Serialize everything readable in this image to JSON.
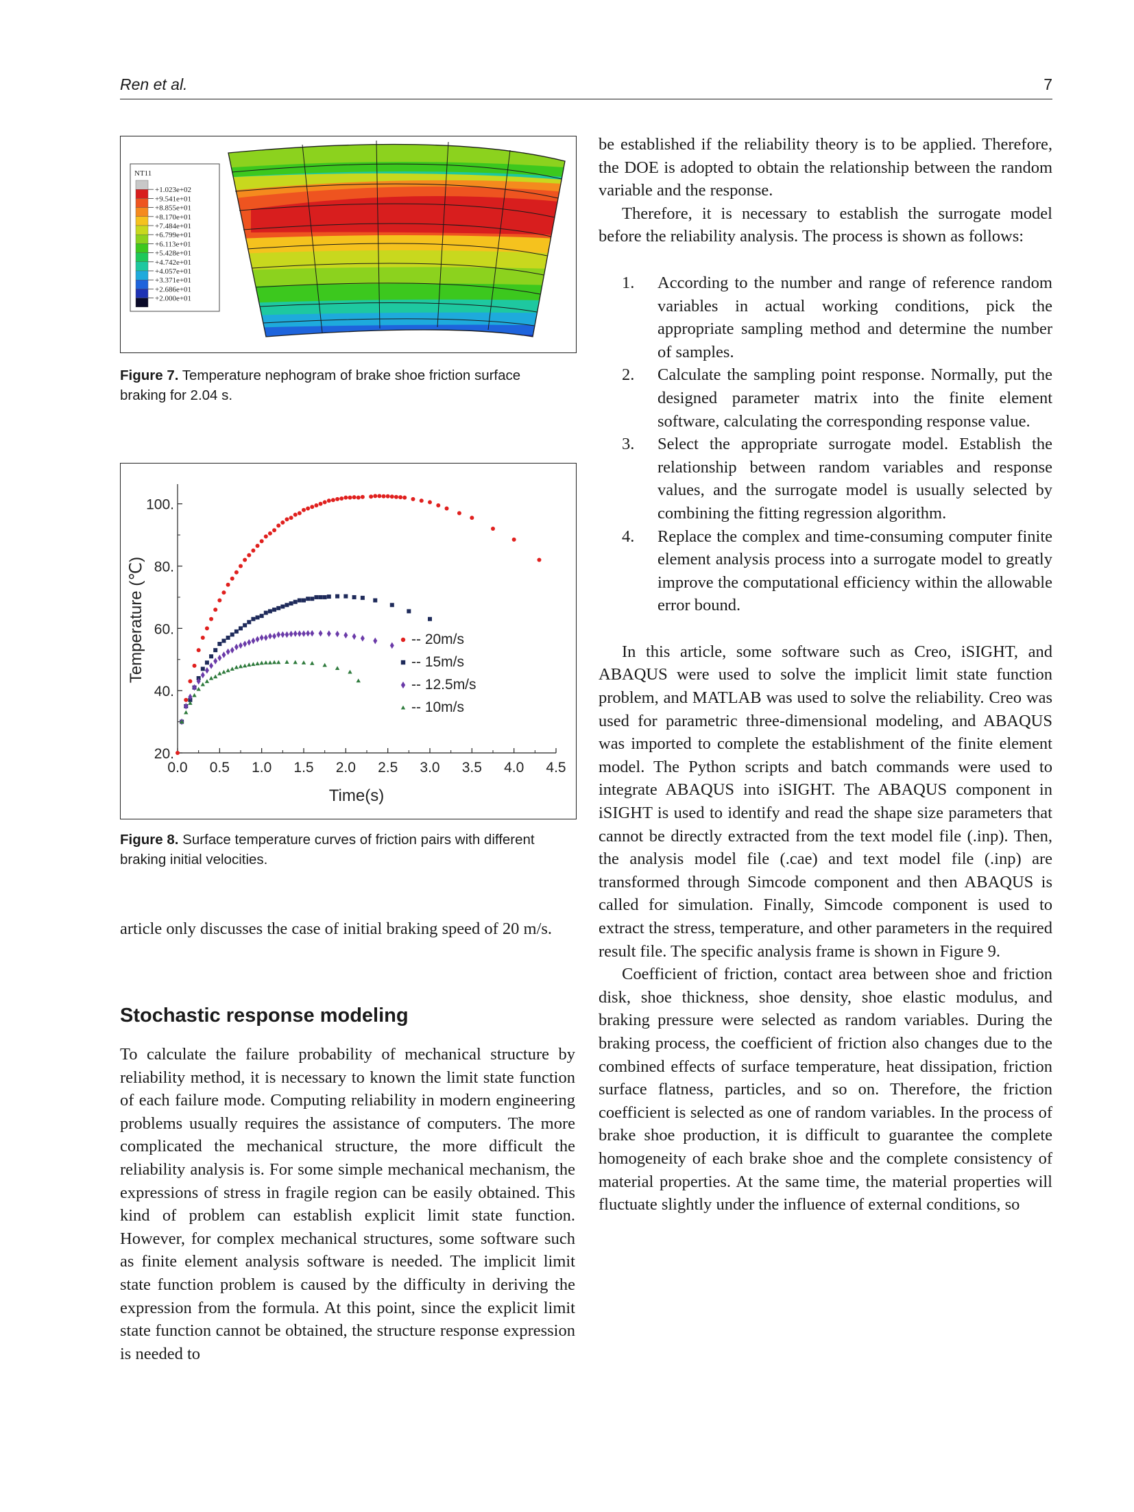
{
  "header": {
    "authors": "Ren et al.",
    "page_number": "7"
  },
  "figure7": {
    "legend_title": "NT11",
    "legend_values": [
      "+1.023e+02",
      "+9.541e+01",
      "+8.855e+01",
      "+8.170e+01",
      "+7.484e+01",
      "+6.799e+01",
      "+6.113e+01",
      "+5.428e+01",
      "+4.742e+01",
      "+4.057e+01",
      "+3.371e+01",
      "+2.686e+01",
      "+2.000e+01"
    ],
    "legend_colors": [
      "#c8c8c8",
      "#d81e1e",
      "#ee5420",
      "#f58a1e",
      "#f5c21e",
      "#c8d81e",
      "#8cd21e",
      "#3cc81e",
      "#1ec85a",
      "#1ec8a0",
      "#1eaadc",
      "#1e64dc",
      "#1e32b4",
      "#0a0a28"
    ],
    "caption_label": "Figure 7.",
    "caption_text": "Temperature nephogram of brake shoe friction surface braking for 2.04 s."
  },
  "figure8": {
    "caption_label": "Figure 8.",
    "caption_text": "Surface temperature curves of friction pairs with different braking initial velocities.",
    "chart_data": {
      "type": "scatter",
      "xlabel": "Time(s)",
      "ylabel": "Temperature  (℃)",
      "xlim": [
        0,
        4.5
      ],
      "ylim": [
        20,
        105
      ],
      "xticks": [
        "0.0",
        "0.5",
        "1.0",
        "1.5",
        "2.0",
        "2.5",
        "3.0",
        "3.5",
        "4.0",
        "4.5"
      ],
      "yticks": [
        "20.",
        "40.",
        "60.",
        "80.",
        "100."
      ],
      "legend_position": "middle-right",
      "series": [
        {
          "name": "-- 20m/s",
          "color": "#e0201e",
          "marker": "circle",
          "x": [
            0.0,
            0.05,
            0.1,
            0.15,
            0.2,
            0.25,
            0.3,
            0.35,
            0.4,
            0.45,
            0.5,
            0.55,
            0.6,
            0.65,
            0.7,
            0.75,
            0.8,
            0.85,
            0.9,
            0.95,
            1.0,
            1.05,
            1.1,
            1.15,
            1.2,
            1.25,
            1.3,
            1.35,
            1.4,
            1.45,
            1.5,
            1.55,
            1.6,
            1.65,
            1.7,
            1.75,
            1.8,
            1.85,
            1.9,
            1.95,
            2.0,
            2.05,
            2.1,
            2.15,
            2.2,
            2.3,
            2.35,
            2.4,
            2.45,
            2.5,
            2.55,
            2.6,
            2.65,
            2.7,
            2.8,
            2.9,
            3.0,
            3.1,
            3.2,
            3.35,
            3.5,
            3.75,
            4.0,
            4.3
          ],
          "y": [
            20,
            30,
            37,
            43,
            48,
            53,
            57,
            60,
            63,
            66,
            69,
            71.5,
            74,
            76,
            78,
            80,
            82,
            83.5,
            85,
            86.5,
            88,
            89.5,
            90.5,
            91.5,
            93,
            94,
            95,
            95.5,
            96.5,
            97,
            98,
            98.5,
            99,
            99.5,
            100,
            100.5,
            101,
            101.2,
            101.5,
            101.7,
            102,
            102,
            102.1,
            102,
            102.2,
            102.3,
            102.5,
            102.5,
            102.4,
            102.4,
            102.3,
            102.2,
            102.1,
            102,
            101.5,
            101,
            100.5,
            99.5,
            98.5,
            97,
            95.5,
            92,
            88.5,
            82
          ]
        },
        {
          "name": "-- 15m/s",
          "color": "#1e2a5a",
          "marker": "square",
          "x": [
            0.05,
            0.1,
            0.15,
            0.2,
            0.25,
            0.3,
            0.35,
            0.4,
            0.45,
            0.5,
            0.55,
            0.6,
            0.65,
            0.7,
            0.75,
            0.8,
            0.85,
            0.9,
            0.95,
            1.0,
            1.05,
            1.1,
            1.15,
            1.2,
            1.25,
            1.3,
            1.35,
            1.4,
            1.45,
            1.5,
            1.55,
            1.6,
            1.65,
            1.7,
            1.75,
            1.8,
            1.9,
            2.0,
            2.1,
            2.2,
            2.35,
            2.55,
            2.75,
            3.0
          ],
          "y": [
            30,
            35,
            37,
            41,
            44,
            47,
            49,
            51,
            53,
            55,
            56,
            57,
            58,
            59,
            60,
            61,
            62,
            63,
            63.5,
            64,
            65,
            65.5,
            66,
            66.5,
            67,
            67.5,
            68,
            68.5,
            69,
            69,
            69.5,
            69.5,
            70,
            70,
            70,
            70.2,
            70.3,
            70.3,
            70,
            69.8,
            69,
            67.5,
            65.5,
            63
          ]
        },
        {
          "name": "-- 12.5m/s",
          "color": "#6a3aa8",
          "marker": "diamond",
          "x": [
            0.05,
            0.1,
            0.15,
            0.2,
            0.25,
            0.3,
            0.35,
            0.4,
            0.45,
            0.5,
            0.55,
            0.6,
            0.65,
            0.7,
            0.75,
            0.8,
            0.85,
            0.9,
            0.95,
            1.0,
            1.05,
            1.1,
            1.15,
            1.2,
            1.25,
            1.3,
            1.35,
            1.4,
            1.45,
            1.5,
            1.55,
            1.6,
            1.7,
            1.8,
            1.9,
            2.0,
            2.1,
            2.2,
            2.35,
            2.55
          ],
          "y": [
            30,
            35,
            38,
            41,
            43,
            45,
            46.5,
            48,
            49.5,
            50.5,
            51.5,
            52.5,
            53,
            54,
            54.5,
            55,
            55.5,
            56,
            56.5,
            57,
            57,
            57.5,
            57.5,
            58,
            58,
            58,
            58.2,
            58.3,
            58.3,
            58.3,
            58.4,
            58.4,
            58.4,
            58.3,
            58.2,
            57.8,
            57.4,
            56.8,
            56,
            54.5
          ]
        },
        {
          "name": "-- 10m/s",
          "color": "#2e7a3c",
          "marker": "triangle",
          "x": [
            0.05,
            0.1,
            0.15,
            0.2,
            0.25,
            0.3,
            0.35,
            0.4,
            0.45,
            0.5,
            0.55,
            0.6,
            0.65,
            0.7,
            0.75,
            0.8,
            0.85,
            0.9,
            0.95,
            1.0,
            1.05,
            1.1,
            1.15,
            1.2,
            1.3,
            1.4,
            1.5,
            1.6,
            1.75,
            1.9,
            2.05,
            2.15
          ],
          "y": [
            30,
            33,
            36,
            38.5,
            40.5,
            42,
            43,
            44,
            44.5,
            45.5,
            46,
            46.5,
            47,
            47.5,
            47.8,
            48,
            48.3,
            48.5,
            48.7,
            48.9,
            49,
            49,
            49.1,
            49.1,
            49.2,
            49.1,
            49,
            48.8,
            48.2,
            47.2,
            46,
            43.2
          ]
        }
      ]
    }
  },
  "left_column": {
    "continuation": "article only discusses the case of initial braking speed of 20 m/s.",
    "section_title": "Stochastic response modeling",
    "paragraph1": "To calculate the failure probability of mechanical structure by reliability method, it is necessary to known the limit state function of each failure mode. Computing reliability in modern engineering problems usually requires the assistance of computers. The more complicated the mechanical structure, the more difficult the reliability analysis is. For some simple mechanical mechanism, the expressions of stress in fragile region can be easily obtained. This kind of problem can establish explicit limit state function. However, for complex mechanical structures, some software such as finite element analysis software is needed. The implicit limit state function problem is caused by the difficulty in deriving the expression from the formula. At this point, since the explicit limit state function cannot be obtained, the structure response expression is needed to"
  },
  "right_column": {
    "continuation": "be established if the reliability theory is to be applied. Therefore, the DOE is adopted to obtain the relationship between the random variable and the response.",
    "paragraph1": "Therefore, it is necessary to establish the surrogate model before the reliability analysis. The process is shown as follows:",
    "steps": [
      {
        "num": "1.",
        "text": "According to the number and range of reference random variables in actual working conditions, pick the appropriate sampling method and determine the number of samples."
      },
      {
        "num": "2.",
        "text": "Calculate the sampling point response. Normally, put the designed parameter matrix into the finite element software, calculating the corresponding response value."
      },
      {
        "num": "3.",
        "text": "Select the appropriate surrogate model. Establish the relationship between random variables and response values, and the surrogate model is usually selected by combining the fitting regression algorithm."
      },
      {
        "num": "4.",
        "text": "Replace the complex and time-consuming computer finite element analysis process into a surrogate model to greatly improve the computational efficiency within the allowable error bound."
      }
    ],
    "paragraph2": "In this article, some software such as Creo, iSIGHT, and ABAQUS were used to solve the implicit limit state function problem, and MATLAB was used to solve the reliability. Creo was used for parametric three-dimensional modeling, and ABAQUS was imported to complete the establishment of the finite element model. The Python scripts and batch commands were used to integrate ABAQUS into iSIGHT. The ABAQUS component in iSIGHT is used to identify and read the shape size parameters that cannot be directly extracted from the text model file (.inp). Then, the analysis model file (.cae) and text model file (.inp) are transformed through Simcode component and then ABAQUS is called for simulation. Finally, Simcode component is used to extract the stress, temperature, and other parameters in the required result file. The specific analysis frame is shown in Figure 9.",
    "paragraph3": "Coefficient of friction, contact area between shoe and friction disk, shoe thickness, shoe density, shoe elastic modulus, and braking pressure were selected as random variables. During the braking process, the coefficient of friction also changes due to the combined effects of surface temperature, heat dissipation, friction surface flatness, particles, and so on. Therefore, the friction coefficient is selected as one of random variables. In the process of brake shoe production, it is difficult to guarantee the complete homogeneity of each brake shoe and the complete consistency of material properties. At the same time, the material properties will fluctuate slightly under the influence of external conditions, so"
  }
}
